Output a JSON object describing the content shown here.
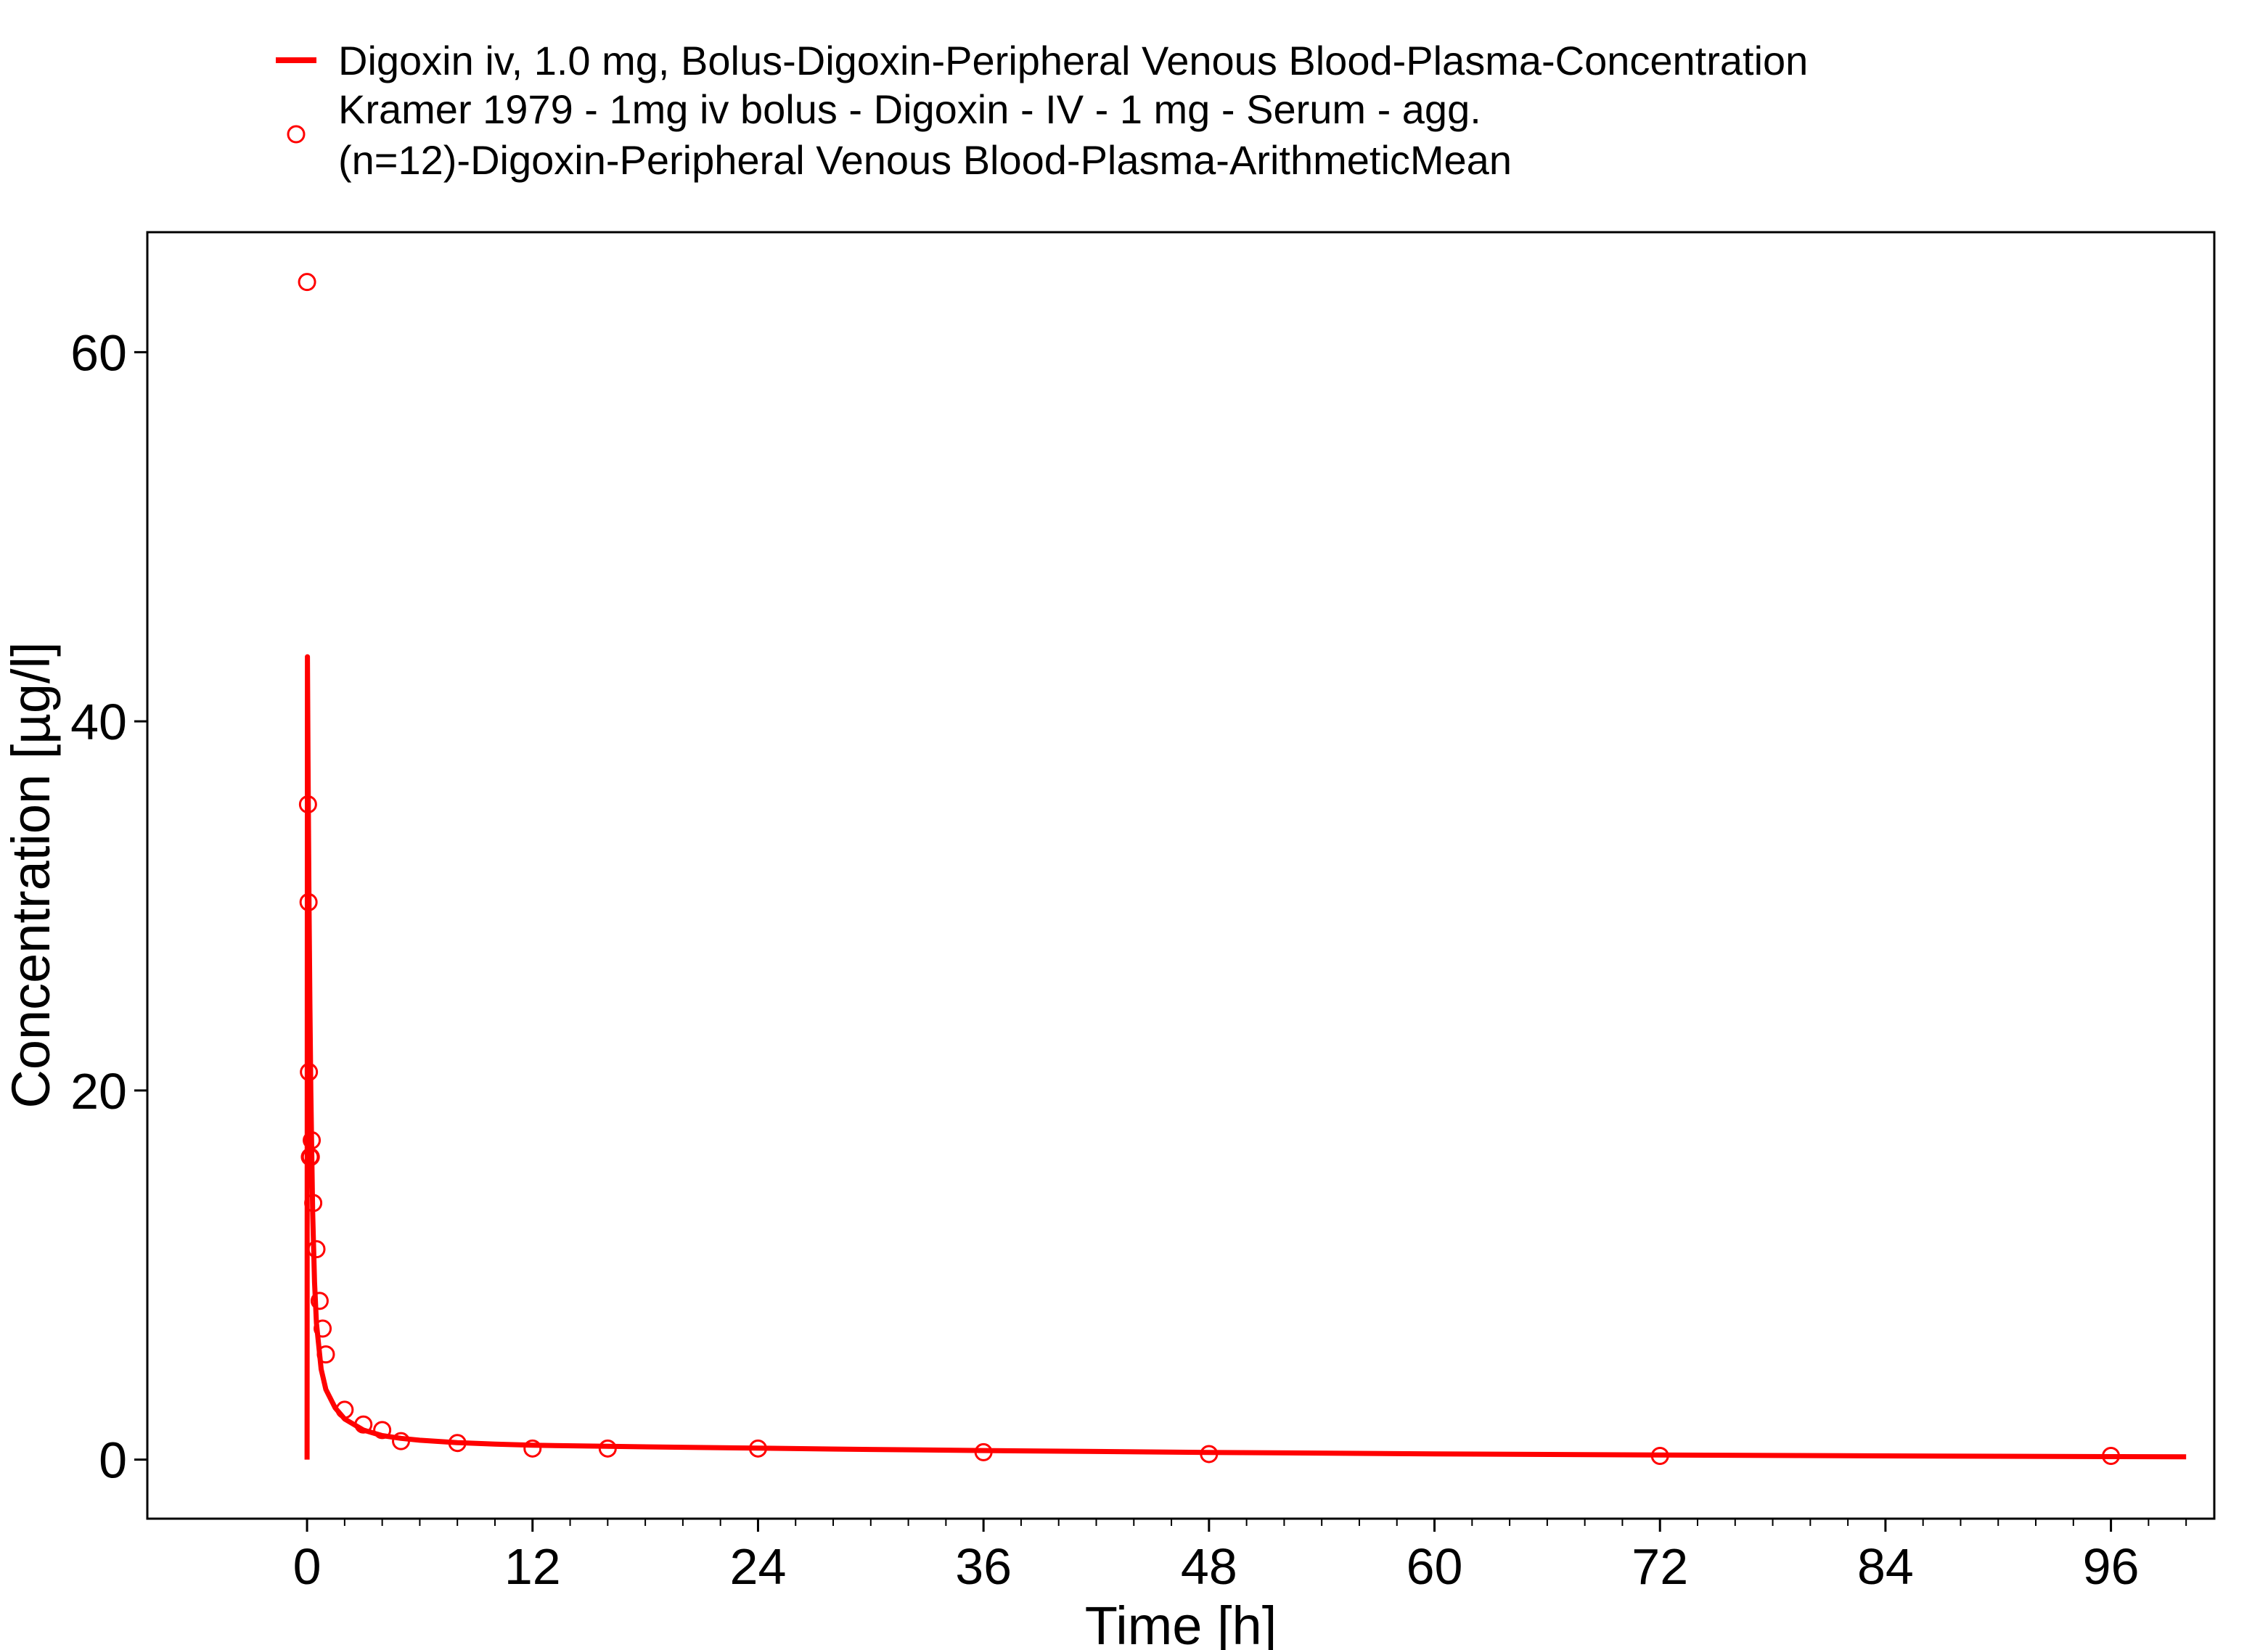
{
  "chart_data": {
    "type": "scatter",
    "title": "",
    "xlabel": "Time [h]",
    "ylabel": "Concentration [µg/l]",
    "xlim": [
      -8.5,
      101.5
    ],
    "ylim": [
      -3.2,
      66.5
    ],
    "x_ticks": [
      0,
      12,
      24,
      36,
      48,
      60,
      72,
      84,
      96
    ],
    "x_tick_labels": [
      "0",
      "12",
      "24",
      "36",
      "48",
      "60",
      "72",
      "84",
      "96"
    ],
    "x_minor_step": 2,
    "y_ticks": [
      0,
      20,
      40,
      60
    ],
    "y_tick_labels": [
      "0",
      "20",
      "40",
      "60"
    ],
    "grid": false,
    "legend_position": "top",
    "series": [
      {
        "name": "Digoxin iv, 1.0 mg, Bolus-Digoxin-Peripheral Venous Blood-Plasma-Concentration",
        "kind": "line",
        "color": "#ff0000",
        "x": [
          0,
          0.02,
          0.05,
          0.1,
          0.15,
          0.2,
          0.3,
          0.4,
          0.5,
          0.75,
          1,
          1.5,
          2,
          3,
          4,
          5,
          6,
          8,
          10,
          12,
          16,
          20,
          24,
          30,
          36,
          42,
          48,
          60,
          72,
          84,
          96,
          100
        ],
        "y": [
          0,
          43.5,
          37.9,
          30.5,
          24.6,
          19.9,
          13.4,
          9.6,
          7.4,
          4.9,
          3.8,
          2.8,
          2.2,
          1.6,
          1.3,
          1.15,
          1.05,
          0.92,
          0.84,
          0.78,
          0.72,
          0.67,
          0.62,
          0.55,
          0.49,
          0.44,
          0.39,
          0.31,
          0.25,
          0.2,
          0.16,
          0.15
        ]
      },
      {
        "name": "Kramer 1979 - 1mg iv bolus - Digoxin - IV - 1 mg - Serum - agg. (n=12)-Digoxin-Peripheral Venous Blood-Plasma-ArithmeticMean",
        "name_lines": [
          "Kramer 1979 - 1mg iv bolus - Digoxin - IV - 1 mg - Serum - agg.",
          "(n=12)-Digoxin-Peripheral Venous Blood-Plasma-ArithmeticMean"
        ],
        "kind": "points",
        "color": "#ff0000",
        "x": [
          0.0,
          0.05,
          0.08,
          0.1,
          0.15,
          0.2,
          0.25,
          0.33,
          0.5,
          0.67,
          0.83,
          1.0,
          2.0,
          3.0,
          4.0,
          5.0,
          8.0,
          12.0,
          16.0,
          24.0,
          36.0,
          48.0,
          72.0,
          96.0
        ],
        "y": [
          63.8,
          35.5,
          30.2,
          21.0,
          16.4,
          16.4,
          17.3,
          13.9,
          11.4,
          8.6,
          7.1,
          5.7,
          2.7,
          1.9,
          1.6,
          1.0,
          0.9,
          0.6,
          0.6,
          0.6,
          0.4,
          0.3,
          0.2,
          0.2
        ]
      }
    ]
  }
}
